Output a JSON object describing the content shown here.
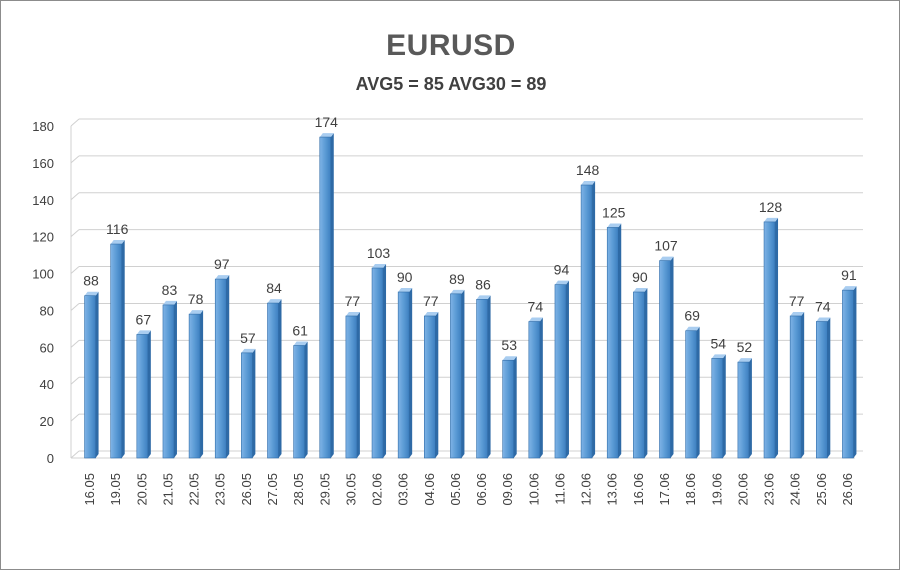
{
  "chart_data": {
    "type": "bar",
    "title": "EURUSD",
    "subtitle": "AVG5 = 85 AVG30 = 89",
    "categories": [
      "16.05",
      "19.05",
      "20.05",
      "21.05",
      "22.05",
      "23.05",
      "26.05",
      "27.05",
      "28.05",
      "29.05",
      "30.05",
      "02.06",
      "03.06",
      "04.06",
      "05.06",
      "06.06",
      "09.06",
      "10.06",
      "11.06",
      "12.06",
      "13.06",
      "16.06",
      "17.06",
      "18.06",
      "19.06",
      "20.06",
      "23.06",
      "24.06",
      "25.06",
      "26.06"
    ],
    "values": [
      88,
      116,
      67,
      83,
      78,
      97,
      57,
      84,
      61,
      174,
      77,
      103,
      90,
      77,
      89,
      86,
      53,
      74,
      94,
      148,
      125,
      90,
      107,
      69,
      54,
      52,
      128,
      77,
      74,
      91
    ],
    "yticks": [
      0,
      20,
      40,
      60,
      80,
      100,
      120,
      140,
      160,
      180
    ],
    "ylim": [
      0,
      180
    ],
    "xlabel": "",
    "ylabel": "",
    "grid": true,
    "bar_color": "#5b9bd5",
    "legend": "none"
  }
}
